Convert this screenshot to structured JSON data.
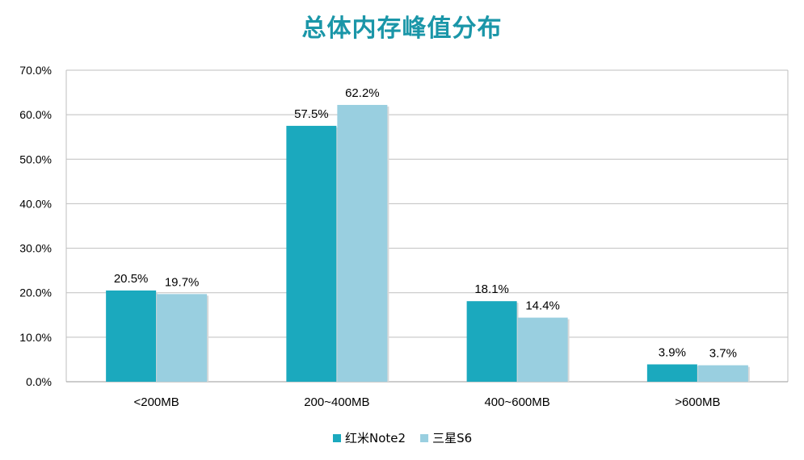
{
  "chart_data": {
    "type": "bar",
    "title": "总体内存峰值分布",
    "categories": [
      "<200MB",
      "200~400MB",
      "400~600MB",
      ">600MB"
    ],
    "series": [
      {
        "name": "红米Note2",
        "values": [
          20.5,
          57.5,
          18.1,
          3.9
        ],
        "labels": [
          "20.5%",
          "57.5%",
          "18.1%",
          "3.9%"
        ],
        "color": "#1ba9be"
      },
      {
        "name": "三星S6",
        "values": [
          19.7,
          62.2,
          14.4,
          3.7
        ],
        "labels": [
          "19.7%",
          "62.2%",
          "14.4%",
          "3.7%"
        ],
        "color": "#99cfe0"
      }
    ],
    "y_ticks": [
      "0.0%",
      "10.0%",
      "20.0%",
      "30.0%",
      "40.0%",
      "50.0%",
      "60.0%",
      "70.0%"
    ],
    "ylim": [
      0,
      70
    ],
    "grid": true,
    "legend_position": "bottom-center",
    "title_color": "#1a96a8"
  }
}
